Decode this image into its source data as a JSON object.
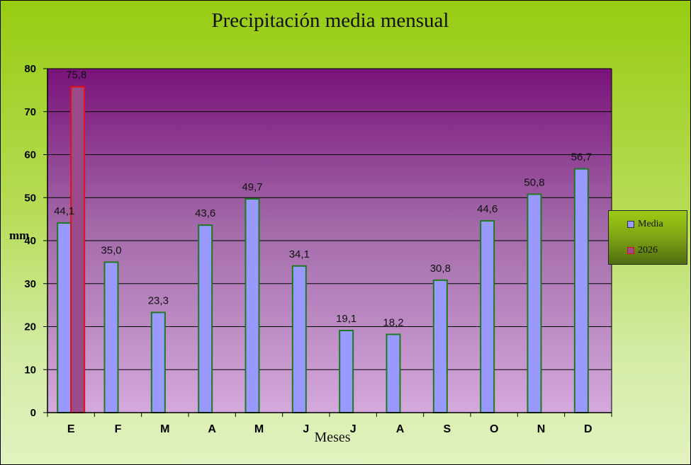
{
  "chart_data": {
    "type": "bar",
    "title": "Precipitación media mensual",
    "xlabel": "Meses",
    "ylabel": "mm",
    "ylim": [
      0,
      80
    ],
    "yticks": [
      0,
      10,
      20,
      30,
      40,
      50,
      60,
      70,
      80
    ],
    "categories": [
      "E",
      "F",
      "M",
      "A",
      "M",
      "J",
      "J",
      "A",
      "S",
      "O",
      "N",
      "D"
    ],
    "grid": true,
    "legend_position": "right",
    "series": [
      {
        "name": "Media",
        "color": "#9999ff",
        "border_color": "#1e7a1e",
        "values": [
          44.1,
          35.0,
          23.3,
          43.6,
          49.7,
          34.1,
          19.1,
          18.2,
          30.8,
          44.6,
          50.8,
          56.7
        ],
        "labels": [
          "44,1",
          "35,0",
          "23,3",
          "43,6",
          "49,7",
          "34,1",
          "19,1",
          "18,2",
          "30,8",
          "44,6",
          "50,8",
          "56,7"
        ]
      },
      {
        "name": "2026",
        "color": "#9a4c8a",
        "border_color": "#e0101a",
        "values": [
          75.8,
          null,
          null,
          null,
          null,
          null,
          null,
          null,
          null,
          null,
          null,
          null
        ],
        "labels": [
          "75,8",
          "",
          "",
          "",
          "",
          "",
          "",
          "",
          "",
          "",
          "",
          ""
        ]
      }
    ]
  }
}
